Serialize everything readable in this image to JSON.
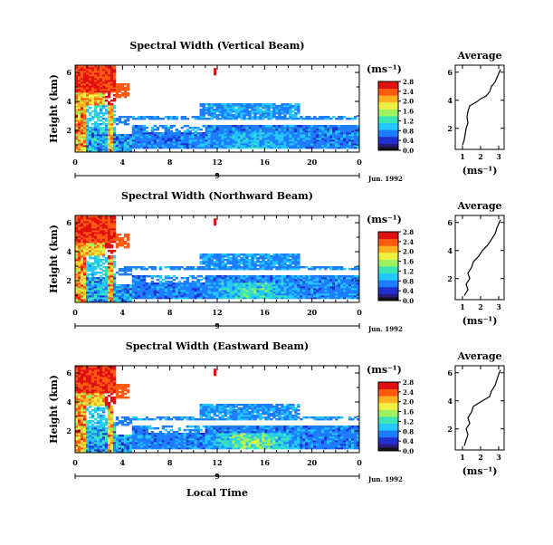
{
  "chart_data": [
    {
      "type": "heatmap",
      "title": "Spectral Width (Vertical Beam)",
      "ylabel": "Height (km)",
      "yticks": [
        "2",
        "4",
        "6"
      ],
      "xticks": [
        "0",
        "4",
        "8",
        "12",
        "16",
        "20",
        "0"
      ],
      "day_labels": [
        "9"
      ],
      "date_label": "Jun. 1992",
      "unit": "(ms⁻¹)",
      "colorbar": {
        "ticks": [
          "0.0",
          "0.4",
          "0.8",
          "1.2",
          "1.6",
          "2.0",
          "2.4",
          "2.8"
        ],
        "range": [
          0,
          2.8
        ]
      },
      "xlim": [
        0,
        24
      ],
      "ylim": [
        0.5,
        6.5
      ],
      "average": {
        "title": "Average",
        "xlabel": "(ms⁻¹)",
        "xticks": [
          "1",
          "2",
          "3"
        ],
        "yticks": [
          "2",
          "4",
          "6"
        ],
        "xlim": [
          0.6,
          3.3
        ],
        "points": [
          [
            1.0,
            0.8
          ],
          [
            1.1,
            1.2
          ],
          [
            1.15,
            1.6
          ],
          [
            1.2,
            2.0
          ],
          [
            1.3,
            2.4
          ],
          [
            1.25,
            2.8
          ],
          [
            1.3,
            3.2
          ],
          [
            1.4,
            3.6
          ],
          [
            1.8,
            3.9
          ],
          [
            2.0,
            4.1
          ],
          [
            2.3,
            4.3
          ],
          [
            2.5,
            4.6
          ],
          [
            2.6,
            5.0
          ],
          [
            2.8,
            5.3
          ],
          [
            2.9,
            5.6
          ],
          [
            3.0,
            5.9
          ],
          [
            3.1,
            6.2
          ]
        ]
      }
    },
    {
      "type": "heatmap",
      "title": "Spectral Width (Northward Beam)",
      "ylabel": "Height (km)",
      "yticks": [
        "2",
        "4",
        "6"
      ],
      "xticks": [
        "0",
        "4",
        "8",
        "12",
        "16",
        "20",
        "0"
      ],
      "day_labels": [
        "9"
      ],
      "date_label": "Jun. 1992",
      "unit": "(ms⁻¹)",
      "colorbar": {
        "ticks": [
          "0.0",
          "0.4",
          "0.8",
          "1.2",
          "1.6",
          "2.0",
          "2.4",
          "2.8"
        ],
        "range": [
          0,
          2.8
        ]
      },
      "xlim": [
        0,
        24
      ],
      "ylim": [
        0.5,
        6.5
      ],
      "average": {
        "title": "Average",
        "xlabel": "(ms⁻¹)",
        "xticks": [
          "1",
          "2",
          "3"
        ],
        "yticks": [
          "2",
          "4",
          "6"
        ],
        "xlim": [
          0.6,
          3.3
        ],
        "points": [
          [
            1.1,
            0.8
          ],
          [
            1.3,
            1.2
          ],
          [
            1.2,
            1.6
          ],
          [
            1.4,
            2.0
          ],
          [
            1.3,
            2.4
          ],
          [
            1.5,
            2.8
          ],
          [
            1.6,
            3.2
          ],
          [
            1.9,
            3.6
          ],
          [
            2.1,
            4.0
          ],
          [
            2.4,
            4.4
          ],
          [
            2.6,
            4.8
          ],
          [
            2.8,
            5.2
          ],
          [
            2.9,
            5.6
          ],
          [
            3.0,
            5.9
          ],
          [
            3.1,
            6.2
          ]
        ]
      }
    },
    {
      "type": "heatmap",
      "title": "Spectral Width (Eastward Beam)",
      "ylabel": "Height (km)",
      "yticks": [
        "2",
        "4",
        "6"
      ],
      "xticks": [
        "0",
        "4",
        "8",
        "12",
        "16",
        "20",
        "0"
      ],
      "day_labels": [
        "9"
      ],
      "date_label": "Jun. 1992",
      "xlabel": "Local Time",
      "unit": "(ms⁻¹)",
      "colorbar": {
        "ticks": [
          "0.0",
          "0.4",
          "0.8",
          "1.2",
          "1.6",
          "2.0",
          "2.4",
          "2.8"
        ],
        "range": [
          0,
          2.8
        ]
      },
      "xlim": [
        0,
        24
      ],
      "ylim": [
        0.5,
        6.5
      ],
      "average": {
        "title": "Average",
        "xlabel": "(ms⁻¹)",
        "xticks": [
          "1",
          "2",
          "3"
        ],
        "yticks": [
          "2",
          "4",
          "6"
        ],
        "xlim": [
          0.6,
          3.3
        ],
        "points": [
          [
            1.1,
            0.8
          ],
          [
            1.2,
            1.2
          ],
          [
            1.3,
            1.6
          ],
          [
            1.2,
            2.0
          ],
          [
            1.4,
            2.4
          ],
          [
            1.3,
            2.8
          ],
          [
            1.5,
            3.2
          ],
          [
            1.6,
            3.6
          ],
          [
            2.1,
            4.0
          ],
          [
            2.5,
            4.3
          ],
          [
            2.6,
            4.7
          ],
          [
            2.8,
            5.1
          ],
          [
            2.9,
            5.5
          ],
          [
            3.0,
            5.9
          ],
          [
            3.1,
            6.2
          ]
        ]
      }
    }
  ],
  "colors": {
    "scale": [
      "#2a1a7a",
      "#2030d0",
      "#1e7dff",
      "#22c8ff",
      "#3ce6b4",
      "#a0f060",
      "#f0f040",
      "#ffb020",
      "#ff5a10",
      "#e01010"
    ]
  }
}
